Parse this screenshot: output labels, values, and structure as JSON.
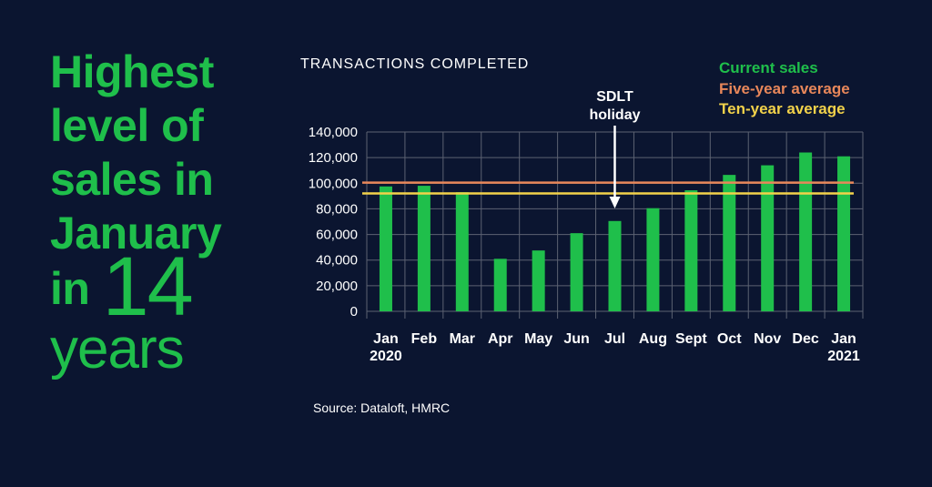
{
  "headline": {
    "line1": "Highest",
    "line2": "level of",
    "line3": "sales in",
    "line4": "January",
    "line5_word": "in",
    "line5_number": "14",
    "line6": "years"
  },
  "source": "Source: Dataloft, HMRC",
  "colors": {
    "background": "#0b1530",
    "headline": "#1fbf4b",
    "bars": "#1fbf4b",
    "five_year": "#e8875a",
    "ten_year": "#f2d24a",
    "grid": "#5c6272",
    "text": "#ffffff"
  },
  "chart_data": {
    "type": "bar",
    "title": "TRANSACTIONS COMPLETED",
    "categories": [
      "Jan",
      "Feb",
      "Mar",
      "Apr",
      "May",
      "Jun",
      "Jul",
      "Aug",
      "Sept",
      "Oct",
      "Nov",
      "Dec",
      "Jan"
    ],
    "category_sublabels": [
      "2020",
      "",
      "",
      "",
      "",
      "",
      "",
      "",
      "",
      "",
      "",
      "",
      "2021"
    ],
    "series": [
      {
        "name": "Current sales",
        "values": [
          97500,
          98000,
          93000,
          41000,
          47500,
          61000,
          70500,
          80500,
          94500,
          106500,
          114000,
          124000,
          121000
        ]
      }
    ],
    "reference_lines": [
      {
        "name": "Five-year average",
        "value": 100500
      },
      {
        "name": "Ten-year average",
        "value": 92000
      }
    ],
    "yticks": [
      0,
      20000,
      40000,
      60000,
      80000,
      100000,
      120000,
      140000
    ],
    "ytick_labels": [
      "0",
      "20,000",
      "40,000",
      "60,000",
      "80,000",
      "100,000",
      "120,000",
      "140,000"
    ],
    "ylim": [
      0,
      140000
    ],
    "xlabel": "",
    "ylabel": "",
    "grid": true,
    "legend": [
      {
        "name": "Current sales"
      },
      {
        "name": "Five-year average"
      },
      {
        "name": "Ten-year average"
      }
    ],
    "legend_position": "top-right",
    "annotation": {
      "line1": "SDLT",
      "line2": "holiday",
      "category_index": 6
    }
  }
}
